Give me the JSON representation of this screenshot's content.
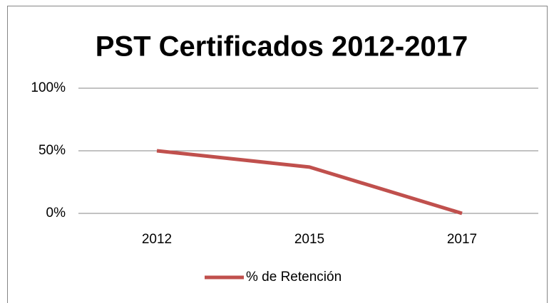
{
  "chart_data": {
    "type": "line",
    "title": "PST Certificados 2012-2017",
    "categories": [
      "2012",
      "2015",
      "2017"
    ],
    "series": [
      {
        "name": "% de Retención",
        "color": "#c0504d",
        "values": [
          50,
          37,
          0
        ]
      }
    ],
    "ylim": [
      0,
      100
    ],
    "yticks": [
      {
        "value": 0,
        "label": "0%"
      },
      {
        "value": 50,
        "label": "50%"
      },
      {
        "value": 100,
        "label": "100%"
      }
    ],
    "grid": true,
    "legend": "bottom"
  }
}
